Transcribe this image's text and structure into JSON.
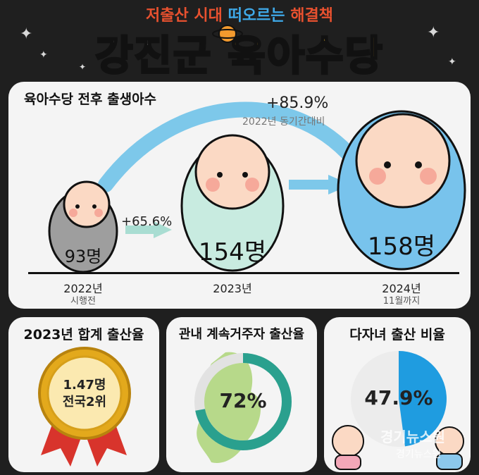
{
  "header": {
    "subtitle_part1": "저출산 시대 ",
    "subtitle_part2": "떠오르는",
    "subtitle_part3": " 해결책",
    "title_part1": "강진군 ",
    "title_part2": "육아수당"
  },
  "births": {
    "title": "육아수당 전후 출생아수",
    "growth_total": "+85.9%",
    "growth_total_note": "2022년 동기간대비",
    "growth_first": "+65.6%",
    "items": [
      {
        "count": "93명",
        "year": "2022년",
        "note": "시행전"
      },
      {
        "count": "154명",
        "year": "2023년",
        "note": ""
      },
      {
        "count": "158명",
        "year": "2024년",
        "note": "11월까지"
      }
    ]
  },
  "stats": [
    {
      "title": "2023년 합계 출산율",
      "value_line1": "1.47명",
      "value_line2": "전국2위"
    },
    {
      "title": "관내 계속거주자 출산율",
      "value": "72%",
      "ratio": 0.72
    },
    {
      "title": "다자녀 출산 비율",
      "value": "47.9%",
      "ratio": 0.479
    }
  ],
  "watermark": {
    "line1": "경기뉴스원",
    "line2": "경기뉴스원"
  },
  "colors": {
    "accent_blue": "#3fa9e8",
    "teal": "#2aa08e",
    "gold": "#e3a91c",
    "ribbon_red": "#d8342c"
  }
}
